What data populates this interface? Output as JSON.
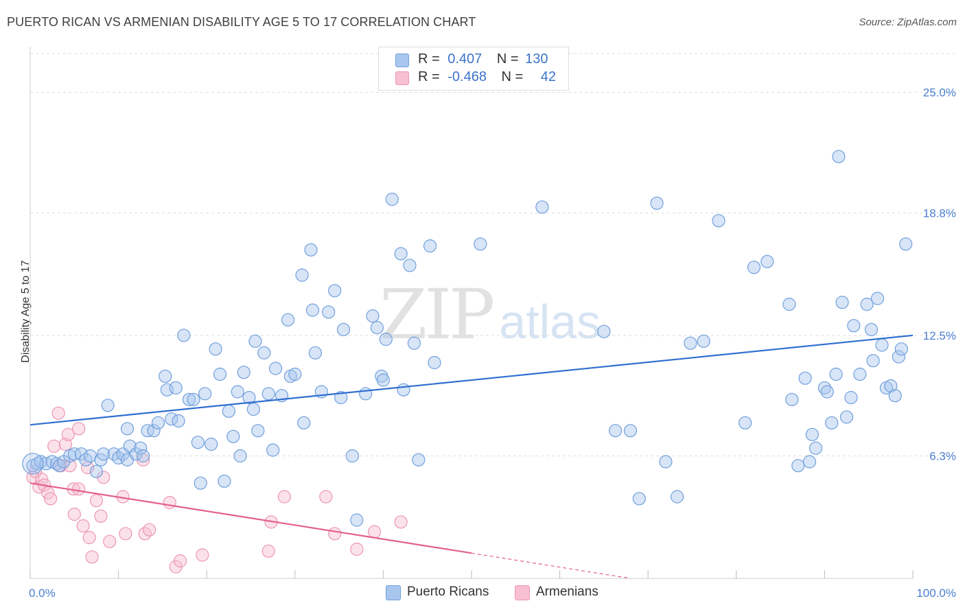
{
  "header": {
    "title": "PUERTO RICAN VS ARMENIAN DISABILITY AGE 5 TO 17 CORRELATION CHART",
    "source": "Source: ZipAtlas.com"
  },
  "watermark": {
    "zip": "ZIP",
    "atlas": "atlas"
  },
  "legend": {
    "rows": [
      {
        "r_label": "R =",
        "r_value": "0.407",
        "n_label": "N =",
        "n_value": "130"
      },
      {
        "r_label": "R =",
        "r_value": "-0.468",
        "n_label": "N =",
        "n_value": "42"
      }
    ]
  },
  "colors": {
    "blue_fill": "#a9c6ee",
    "blue_stroke": "#6f9fdd",
    "blue_line": "#2f6fcf",
    "pink_fill": "#f7bfd1",
    "pink_stroke": "#ec95b3",
    "pink_line": "#e2608f",
    "grid": "#dedede",
    "axis_text": "#4a7fcf"
  },
  "chart_data": {
    "type": "scatter",
    "title": "PUERTO RICAN VS ARMENIAN DISABILITY AGE 5 TO 17 CORRELATION CHART",
    "xlabel": "",
    "ylabel": "Disability Age 5 to 17",
    "xlim": [
      0,
      100
    ],
    "ylim": [
      0,
      27
    ],
    "x_tick_labels": [
      "0.0%",
      "100.0%"
    ],
    "y_ticks": [
      6.3,
      12.5,
      18.8,
      25.0
    ],
    "y_tick_labels": [
      "6.3%",
      "12.5%",
      "18.8%",
      "25.0%"
    ],
    "grid": true,
    "legend_position": "top-center",
    "series": [
      {
        "name": "Puerto Ricans",
        "r": 0.407,
        "n": 130,
        "trend": {
          "x": [
            0,
            100
          ],
          "y": [
            7.9,
            12.5
          ]
        },
        "points": [
          [
            0.3,
            5.8
          ],
          [
            0.8,
            5.9
          ],
          [
            1.2,
            6.0
          ],
          [
            1.8,
            5.9
          ],
          [
            2.5,
            6.0
          ],
          [
            3.0,
            5.9
          ],
          [
            3.3,
            5.8
          ],
          [
            3.8,
            6.0
          ],
          [
            4.5,
            6.3
          ],
          [
            5.0,
            6.4
          ],
          [
            5.8,
            6.4
          ],
          [
            6.3,
            6.1
          ],
          [
            6.8,
            6.3
          ],
          [
            7.5,
            5.5
          ],
          [
            8.0,
            6.1
          ],
          [
            8.3,
            6.4
          ],
          [
            8.8,
            8.9
          ],
          [
            9.5,
            6.4
          ],
          [
            10.0,
            6.2
          ],
          [
            10.5,
            6.4
          ],
          [
            11.0,
            6.1
          ],
          [
            11.3,
            6.8
          ],
          [
            11.0,
            7.7
          ],
          [
            12.0,
            6.4
          ],
          [
            12.5,
            6.7
          ],
          [
            12.8,
            6.3
          ],
          [
            13.3,
            7.6
          ],
          [
            14.0,
            7.6
          ],
          [
            14.5,
            8.0
          ],
          [
            15.5,
            9.7
          ],
          [
            15.3,
            10.4
          ],
          [
            16.0,
            8.2
          ],
          [
            16.5,
            9.8
          ],
          [
            16.8,
            8.1
          ],
          [
            17.4,
            12.5
          ],
          [
            18.0,
            9.2
          ],
          [
            18.5,
            9.2
          ],
          [
            19.0,
            7.0
          ],
          [
            19.3,
            4.9
          ],
          [
            19.8,
            9.5
          ],
          [
            20.5,
            6.9
          ],
          [
            21.0,
            11.8
          ],
          [
            21.5,
            10.5
          ],
          [
            22.0,
            5.0
          ],
          [
            22.5,
            8.6
          ],
          [
            23.0,
            7.3
          ],
          [
            23.5,
            9.6
          ],
          [
            23.8,
            6.3
          ],
          [
            24.2,
            10.6
          ],
          [
            24.8,
            9.3
          ],
          [
            25.3,
            8.7
          ],
          [
            25.8,
            7.6
          ],
          [
            25.5,
            12.2
          ],
          [
            26.5,
            11.6
          ],
          [
            27.0,
            9.5
          ],
          [
            27.5,
            6.6
          ],
          [
            27.8,
            10.8
          ],
          [
            28.5,
            9.4
          ],
          [
            29.5,
            10.4
          ],
          [
            29.2,
            13.3
          ],
          [
            30.0,
            10.5
          ],
          [
            30.8,
            15.6
          ],
          [
            31.0,
            8.0
          ],
          [
            32.0,
            13.8
          ],
          [
            32.3,
            11.6
          ],
          [
            31.8,
            16.9
          ],
          [
            33.0,
            9.6
          ],
          [
            33.8,
            13.7
          ],
          [
            34.5,
            14.8
          ],
          [
            35.2,
            9.3
          ],
          [
            35.5,
            12.8
          ],
          [
            36.5,
            6.3
          ],
          [
            37.0,
            3.0
          ],
          [
            38.0,
            9.5
          ],
          [
            38.8,
            13.5
          ],
          [
            39.3,
            12.9
          ],
          [
            39.8,
            10.4
          ],
          [
            40.0,
            10.2
          ],
          [
            40.3,
            12.3
          ],
          [
            41.0,
            19.5
          ],
          [
            42.0,
            16.7
          ],
          [
            42.3,
            9.7
          ],
          [
            43.0,
            16.1
          ],
          [
            43.5,
            12.1
          ],
          [
            44.0,
            6.1
          ],
          [
            45.3,
            17.1
          ],
          [
            45.8,
            11.1
          ],
          [
            51.0,
            17.2
          ],
          [
            58.0,
            19.1
          ],
          [
            65.0,
            12.7
          ],
          [
            66.3,
            7.6
          ],
          [
            68.0,
            7.6
          ],
          [
            69.0,
            4.1
          ],
          [
            71.0,
            19.3
          ],
          [
            72.0,
            6.0
          ],
          [
            73.3,
            4.2
          ],
          [
            74.8,
            12.1
          ],
          [
            76.3,
            12.2
          ],
          [
            78.0,
            18.4
          ],
          [
            81.0,
            8.0
          ],
          [
            82.0,
            16.0
          ],
          [
            83.5,
            16.3
          ],
          [
            86.0,
            14.1
          ],
          [
            86.3,
            9.2
          ],
          [
            87.0,
            5.8
          ],
          [
            87.8,
            10.3
          ],
          [
            88.3,
            6.0
          ],
          [
            88.6,
            7.4
          ],
          [
            89.0,
            6.7
          ],
          [
            90.0,
            9.8
          ],
          [
            90.3,
            9.6
          ],
          [
            90.8,
            8.0
          ],
          [
            91.3,
            10.5
          ],
          [
            92.0,
            14.2
          ],
          [
            92.5,
            8.3
          ],
          [
            93.0,
            9.3
          ],
          [
            93.3,
            13.0
          ],
          [
            94.0,
            10.5
          ],
          [
            94.8,
            14.1
          ],
          [
            95.3,
            12.8
          ],
          [
            95.5,
            11.2
          ],
          [
            96.0,
            14.4
          ],
          [
            96.5,
            12.0
          ],
          [
            97.0,
            9.8
          ],
          [
            97.5,
            9.9
          ],
          [
            98.0,
            9.4
          ],
          [
            98.4,
            11.4
          ],
          [
            98.7,
            11.8
          ],
          [
            99.2,
            17.2
          ],
          [
            91.6,
            21.7
          ]
        ]
      },
      {
        "name": "Armenians",
        "r": -0.468,
        "n": 42,
        "trend": {
          "x": [
            0,
            50
          ],
          "y": [
            4.9,
            1.3
          ]
        },
        "trend_dashed": {
          "x": [
            50,
            68
          ],
          "y": [
            1.3,
            0.0
          ]
        },
        "points": [
          [
            0.3,
            5.2
          ],
          [
            0.6,
            5.5
          ],
          [
            1.0,
            4.7
          ],
          [
            1.3,
            5.1
          ],
          [
            1.6,
            4.8
          ],
          [
            2.0,
            4.4
          ],
          [
            2.3,
            4.1
          ],
          [
            2.7,
            6.8
          ],
          [
            3.2,
            8.5
          ],
          [
            3.5,
            5.8
          ],
          [
            4.0,
            6.9
          ],
          [
            4.3,
            7.4
          ],
          [
            4.5,
            5.8
          ],
          [
            4.9,
            4.6
          ],
          [
            5.0,
            3.3
          ],
          [
            5.5,
            7.7
          ],
          [
            5.5,
            4.6
          ],
          [
            6.0,
            2.7
          ],
          [
            6.5,
            5.7
          ],
          [
            6.7,
            2.1
          ],
          [
            7.0,
            1.1
          ],
          [
            7.5,
            4.0
          ],
          [
            8.0,
            3.2
          ],
          [
            8.3,
            5.2
          ],
          [
            9.0,
            1.9
          ],
          [
            10.5,
            4.2
          ],
          [
            10.8,
            2.3
          ],
          [
            12.8,
            6.1
          ],
          [
            13.0,
            2.3
          ],
          [
            13.5,
            2.5
          ],
          [
            15.8,
            3.9
          ],
          [
            16.5,
            0.6
          ],
          [
            17.0,
            0.9
          ],
          [
            19.5,
            1.2
          ],
          [
            27.0,
            1.4
          ],
          [
            27.3,
            2.9
          ],
          [
            28.8,
            4.2
          ],
          [
            33.5,
            4.2
          ],
          [
            34.5,
            2.3
          ],
          [
            37.0,
            1.5
          ],
          [
            39.0,
            2.4
          ],
          [
            42.0,
            2.9
          ]
        ]
      }
    ]
  },
  "bottom_legend": [
    {
      "label": "Puerto Ricans"
    },
    {
      "label": "Armenians"
    }
  ]
}
